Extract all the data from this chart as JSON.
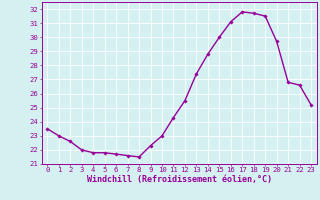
{
  "x": [
    0,
    1,
    2,
    3,
    4,
    5,
    6,
    7,
    8,
    9,
    10,
    11,
    12,
    13,
    14,
    15,
    16,
    17,
    18,
    19,
    20,
    21,
    22,
    23
  ],
  "y": [
    23.5,
    23.0,
    22.6,
    22.0,
    21.8,
    21.8,
    21.7,
    21.6,
    21.5,
    22.3,
    23.0,
    24.3,
    25.5,
    27.4,
    28.8,
    30.0,
    31.1,
    31.8,
    31.7,
    31.5,
    29.7,
    26.8,
    26.6,
    25.2
  ],
  "line_color": "#990099",
  "marker": "D",
  "marker_size": 1.8,
  "linewidth": 1.0,
  "xlabel": "Windchill (Refroidissement éolien,°C)",
  "xlim": [
    -0.5,
    23.5
  ],
  "ylim": [
    21,
    32.5
  ],
  "yticks": [
    21,
    22,
    23,
    24,
    25,
    26,
    27,
    28,
    29,
    30,
    31,
    32
  ],
  "xticks": [
    0,
    1,
    2,
    3,
    4,
    5,
    6,
    7,
    8,
    9,
    10,
    11,
    12,
    13,
    14,
    15,
    16,
    17,
    18,
    19,
    20,
    21,
    22,
    23
  ],
  "background_color": "#d4f0f0",
  "grid_color": "#ffffff",
  "tick_color": "#990099",
  "label_color": "#990099",
  "tick_fontsize": 5.2,
  "xlabel_fontsize": 6.0,
  "grid_linewidth": 0.6,
  "spine_color": "#990099"
}
